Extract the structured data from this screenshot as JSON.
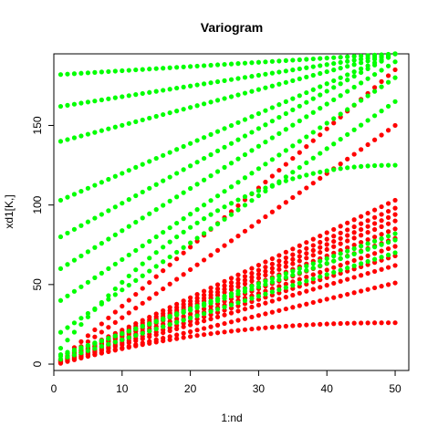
{
  "chart_data": {
    "type": "scatter",
    "title": "Variogram",
    "xlabel": "1:nd",
    "ylabel": "xd1[K,]",
    "xlim": [
      0,
      52
    ],
    "ylim": [
      -4,
      195
    ],
    "x_ticks": [
      0,
      10,
      20,
      30,
      40,
      50
    ],
    "y_ticks": [
      0,
      50,
      100,
      150
    ],
    "grid": false,
    "legend": "none",
    "series": [
      {
        "color": "#ff0000",
        "curves": [
          {
            "y1": 0.5,
            "y50": 26,
            "shape": "sat"
          },
          {
            "y1": 1,
            "y50": 51,
            "shape": "lin"
          },
          {
            "y1": 1,
            "y50": 62,
            "shape": "lin"
          },
          {
            "y1": 1,
            "y50": 68,
            "shape": "lin"
          },
          {
            "y1": 1.5,
            "y50": 74,
            "shape": "lin"
          },
          {
            "y1": 1.5,
            "y50": 79,
            "shape": "lin"
          },
          {
            "y1": 2,
            "y50": 85,
            "shape": "lin"
          },
          {
            "y1": 2,
            "y50": 90,
            "shape": "lin"
          },
          {
            "y1": 2,
            "y50": 94,
            "shape": "lin"
          },
          {
            "y1": 2.5,
            "y50": 98,
            "shape": "lin"
          },
          {
            "y1": 3,
            "y50": 103,
            "shape": "lin"
          },
          {
            "y1": 2,
            "y50": 150,
            "shape": "lin"
          },
          {
            "y1": 3,
            "y50": 185,
            "shape": "lin"
          }
        ]
      },
      {
        "color": "#00ff00",
        "curves": [
          {
            "y1": 3,
            "y50": 70,
            "shape": "lin"
          },
          {
            "y1": 5,
            "y50": 82,
            "shape": "lin"
          },
          {
            "y1": 6,
            "y50": 78,
            "shape": "lin"
          },
          {
            "y1": 10,
            "y50": 125,
            "shape": "sat"
          },
          {
            "y1": 20,
            "y50": 165,
            "shape": "lin"
          },
          {
            "y1": 40,
            "y50": 180,
            "shape": "lin"
          },
          {
            "y1": 60,
            "y50": 190,
            "shape": "lin"
          },
          {
            "y1": 80,
            "y50": 195,
            "shape": "lin"
          },
          {
            "y1": 103,
            "y50": 195,
            "shape": "lin"
          },
          {
            "y1": 140,
            "y50": 195,
            "shape": "lin"
          },
          {
            "y1": 162,
            "y50": 195,
            "shape": "lin"
          },
          {
            "y1": 182,
            "y50": 195,
            "shape": "lin"
          }
        ]
      }
    ]
  }
}
